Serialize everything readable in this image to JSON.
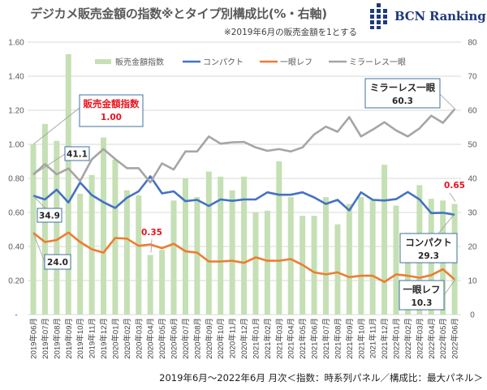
{
  "header": {
    "title": "デジカメ販売金額の指数※とタイプ別構成比(%・右軸)",
    "subtitle": "※2019年6月の販売金額を1とする",
    "logo_text": "BCN Ranking"
  },
  "footer": {
    "note": "2019年6月～2022年6月 月次＜指数：時系列パネル／構成比：最大パネル＞"
  },
  "colors": {
    "bar": "#c5e0b4",
    "compact": "#4472c4",
    "slr": "#ed7d31",
    "mirrorless": "#a5a5a5",
    "gridline": "#d9d9d9",
    "highlight_text": "#e8141e",
    "callout_border": "#41719c"
  },
  "chart_data": {
    "type": "bar+line",
    "title": "デジカメ販売金額の指数※とタイプ別構成比(%・右軸)",
    "subtitle": "※2019年6月の販売金額を1とする",
    "categories": [
      "2019年06月",
      "2019年07月",
      "2019年08月",
      "2019年09月",
      "2019年10月",
      "2019年11月",
      "2019年12月",
      "2020年01月",
      "2020年02月",
      "2020年03月",
      "2020年04月",
      "2020年05月",
      "2020年06月",
      "2020年07月",
      "2020年08月",
      "2020年09月",
      "2020年10月",
      "2020年11月",
      "2020年12月",
      "2021年01月",
      "2021年02月",
      "2021年03月",
      "2021年04月",
      "2021年05月",
      "2021年06月",
      "2021年07月",
      "2021年08月",
      "2021年09月",
      "2021年10月",
      "2021年11月",
      "2021年12月",
      "2022年01月",
      "2022年02月",
      "2022年03月",
      "2022年04月",
      "2022年05月",
      "2022年06月"
    ],
    "left_axis": {
      "ylim": [
        0,
        1.6
      ],
      "ticks": [
        "-",
        "0.20",
        "0.40",
        "0.60",
        "0.80",
        "1.00",
        "1.20",
        "1.40",
        "1.60"
      ]
    },
    "right_axis": {
      "ylim": [
        0,
        80
      ],
      "ticks": [
        "0",
        "10",
        "20",
        "30",
        "40",
        "50",
        "60",
        "70",
        "80"
      ]
    },
    "grid": true,
    "legend_position": "top",
    "series": [
      {
        "name": "販売金額指数",
        "type": "bar",
        "axis": "left",
        "values": [
          1.0,
          1.12,
          1.02,
          1.53,
          0.71,
          0.82,
          1.04,
          0.91,
          0.73,
          0.7,
          0.35,
          0.38,
          0.67,
          0.8,
          0.69,
          0.84,
          0.81,
          0.73,
          0.81,
          0.6,
          0.61,
          0.9,
          0.69,
          0.58,
          0.58,
          0.69,
          0.53,
          0.65,
          0.69,
          0.67,
          0.88,
          0.64,
          0.48,
          0.76,
          0.68,
          0.67,
          0.65
        ]
      },
      {
        "name": "コンパクト",
        "type": "line",
        "axis": "right",
        "values": [
          34.9,
          33.8,
          36.7,
          32.9,
          38.8,
          35.1,
          33.0,
          31.3,
          34.3,
          36.2,
          40.6,
          35.6,
          36.2,
          33.3,
          33.7,
          31.9,
          33.8,
          33.4,
          33.8,
          33.8,
          35.9,
          35.2,
          35.2,
          35.9,
          34.4,
          32.5,
          33.7,
          30.6,
          35.9,
          33.7,
          33.5,
          33.9,
          36.0,
          33.8,
          29.8,
          29.9,
          29.3
        ]
      },
      {
        "name": "一眼レフ",
        "type": "line",
        "axis": "right",
        "values": [
          24.0,
          21.3,
          21.9,
          24.1,
          21.3,
          19.2,
          18.2,
          22.5,
          22.3,
          20.2,
          20.6,
          19.5,
          20.8,
          18.6,
          18.2,
          15.6,
          15.6,
          15.8,
          15.2,
          16.8,
          15.8,
          15.8,
          16.3,
          14.6,
          12.4,
          11.8,
          12.4,
          11.0,
          11.4,
          11.4,
          9.6,
          11.8,
          11.4,
          10.8,
          11.6,
          13.3,
          10.3
        ]
      },
      {
        "name": "ミラーレス一眼",
        "type": "line",
        "axis": "right",
        "values": [
          41.1,
          44.2,
          41.2,
          42.9,
          39.2,
          45.6,
          48.6,
          45.7,
          43.0,
          43.0,
          38.8,
          44.4,
          42.6,
          47.9,
          47.9,
          52.3,
          50.2,
          50.6,
          50.7,
          49.1,
          48.1,
          48.6,
          47.9,
          49.1,
          52.9,
          55.2,
          53.7,
          58.0,
          52.3,
          54.3,
          56.5,
          54.1,
          52.3,
          54.7,
          58.4,
          56.3,
          60.3
        ]
      }
    ],
    "annotations": [
      {
        "kind": "callout",
        "title": "販売金額指数",
        "value": "1.00",
        "series": "販売金額指数",
        "index": 0,
        "color": "red"
      },
      {
        "kind": "callout",
        "value": "41.1",
        "series": "ミラーレス一眼",
        "index": 0
      },
      {
        "kind": "callout",
        "value": "34.9",
        "series": "コンパクト",
        "index": 0
      },
      {
        "kind": "callout",
        "value": "24.0",
        "series": "一眼レフ",
        "index": 0
      },
      {
        "kind": "label",
        "value": "0.35",
        "series": "販売金額指数",
        "index": 10,
        "color": "red"
      },
      {
        "kind": "label",
        "value": "0.65",
        "series": "販売金額指数",
        "index": 36,
        "color": "red"
      },
      {
        "kind": "callout",
        "title": "ミラーレス一眼",
        "value": "60.3",
        "series": "ミラーレス一眼",
        "index": 36
      },
      {
        "kind": "callout",
        "title": "コンパクト",
        "value": "29.3",
        "series": "コンパクト",
        "index": 36
      },
      {
        "kind": "callout",
        "title": "一眼レフ",
        "value": "10.3",
        "series": "一眼レフ",
        "index": 36
      }
    ]
  }
}
